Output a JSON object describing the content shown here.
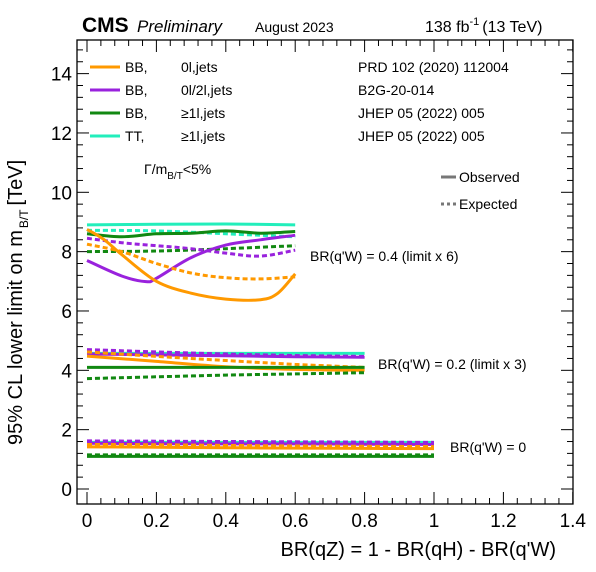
{
  "header": {
    "cms": "CMS",
    "preliminary": "Preliminary",
    "date": "August 2023",
    "lumi": "138 fb",
    "lumi_exp": "-1",
    "energy": "(13 TeV)"
  },
  "legend": [
    {
      "label_a": "BB,",
      "label_b": "0l,jets",
      "ref": "PRD 102 (2020) 112004",
      "color": "#ff9900"
    },
    {
      "label_a": "BB,",
      "label_b": "0l/2l,jets",
      "ref": "B2G-20-014",
      "color": "#9922dd"
    },
    {
      "label_a": "BB,",
      "label_b": "≥1l,jets",
      "ref": "JHEP 05 (2022) 005",
      "color": "#118811"
    },
    {
      "label_a": "TT,",
      "label_b": "≥1l,jets",
      "ref": "JHEP 05 (2022) 005",
      "color": "#22eebb"
    }
  ],
  "style_legend": {
    "observed": "Observed",
    "expected": "Expected"
  },
  "width_note": {
    "main": "Γ/m",
    "sub": "B/T",
    "tail": "<5%"
  },
  "annotations": {
    "g04": "BR(q'W) = 0.4 (limit x 6)",
    "g02": "BR(q'W) = 0.2 (limit x 3)",
    "g00": "BR(q'W) = 0"
  },
  "chart_data": {
    "type": "line",
    "xlabel": "BR(qZ) = 1 - BR(qH) - BR(q'W)",
    "ylabel_main": "95% CL lower limit on m",
    "ylabel_sub": "B/T",
    "ylabel_unit": "[TeV]",
    "xlim": [
      0,
      1.4
    ],
    "ylim": [
      0,
      15
    ],
    "xticks": [
      0,
      0.2,
      0.4,
      0.6,
      0.8,
      1,
      1.2,
      1.4
    ],
    "xtick_labels": [
      "0",
      "0.2",
      "0.4",
      "0.6",
      "0.8",
      "1",
      "1.2",
      "1.4"
    ],
    "yticks": [
      0,
      2,
      4,
      6,
      8,
      10,
      12,
      14
    ],
    "ytick_labels": [
      "0",
      "2",
      "4",
      "6",
      "8",
      "10",
      "12",
      "14"
    ],
    "grid": false,
    "series": [
      {
        "group": "BR(q'W) = 0",
        "analysis": "TT ≥1l,jets",
        "style": "observed",
        "color": "#22eebb",
        "x": [
          0,
          0.2,
          0.4,
          0.6,
          0.8,
          1.0
        ],
        "y": [
          1.57,
          1.57,
          1.57,
          1.57,
          1.57,
          1.57
        ]
      },
      {
        "group": "BR(q'W) = 0",
        "analysis": "BB 0l/2l,jets",
        "style": "expected",
        "color": "#9922dd",
        "x": [
          0,
          0.2,
          0.4,
          0.6,
          0.8,
          1.0
        ],
        "y": [
          1.62,
          1.61,
          1.6,
          1.59,
          1.58,
          1.57
        ]
      },
      {
        "group": "BR(q'W) = 0",
        "analysis": "BB 0l/2l,jets",
        "style": "observed",
        "color": "#9922dd",
        "x": [
          0,
          0.2,
          0.4,
          0.6,
          0.8,
          1.0
        ],
        "y": [
          1.54,
          1.53,
          1.52,
          1.52,
          1.51,
          1.5
        ]
      },
      {
        "group": "BR(q'W) = 0",
        "analysis": "BB 0l,jets",
        "style": "expected",
        "color": "#ff9900",
        "x": [
          0,
          0.2,
          0.4,
          0.6,
          0.8,
          1.0
        ],
        "y": [
          1.5,
          1.49,
          1.47,
          1.45,
          1.44,
          1.43
        ]
      },
      {
        "group": "BR(q'W) = 0",
        "analysis": "BB 0l,jets",
        "style": "observed",
        "color": "#ff9900",
        "x": [
          0,
          0.2,
          0.4,
          0.6,
          0.8,
          1.0
        ],
        "y": [
          1.42,
          1.41,
          1.39,
          1.38,
          1.37,
          1.36
        ]
      },
      {
        "group": "BR(q'W) = 0",
        "analysis": "BB ≥1l,jets",
        "style": "expected",
        "color": "#118811",
        "x": [
          0,
          0.2,
          0.4,
          0.6,
          0.8,
          1.0
        ],
        "y": [
          1.15,
          1.15,
          1.15,
          1.15,
          1.15,
          1.15
        ]
      },
      {
        "group": "BR(q'W) = 0",
        "analysis": "BB ≥1l,jets",
        "style": "observed",
        "color": "#118811",
        "x": [
          0,
          0.2,
          0.4,
          0.6,
          0.8,
          1.0
        ],
        "y": [
          1.1,
          1.1,
          1.1,
          1.1,
          1.1,
          1.1
        ]
      },
      {
        "group": "BR(q'W) = 0.2",
        "analysis": "TT ≥1l,jets",
        "style": "observed",
        "color": "#22eebb",
        "x": [
          0,
          0.2,
          0.4,
          0.6,
          0.8
        ],
        "y": [
          4.57,
          4.57,
          4.57,
          4.57,
          4.57
        ]
      },
      {
        "group": "BR(q'W) = 0.2",
        "analysis": "BB 0l/2l,jets",
        "style": "expected",
        "color": "#9922dd",
        "x": [
          0,
          0.2,
          0.4,
          0.6,
          0.8
        ],
        "y": [
          4.7,
          4.62,
          4.55,
          4.5,
          4.47
        ]
      },
      {
        "group": "BR(q'W) = 0.2",
        "analysis": "BB 0l/2l,jets",
        "style": "observed",
        "color": "#9922dd",
        "x": [
          0,
          0.2,
          0.4,
          0.6,
          0.8
        ],
        "y": [
          4.55,
          4.52,
          4.49,
          4.46,
          4.44
        ]
      },
      {
        "group": "BR(q'W) = 0.2",
        "analysis": "BB 0l,jets",
        "style": "expected",
        "color": "#ff9900",
        "x": [
          0,
          0.2,
          0.4,
          0.6,
          0.8
        ],
        "y": [
          4.62,
          4.47,
          4.33,
          4.2,
          4.1
        ]
      },
      {
        "group": "BR(q'W) = 0.2",
        "analysis": "BB 0l,jets",
        "style": "observed",
        "color": "#ff9900",
        "x": [
          0,
          0.2,
          0.4,
          0.6,
          0.8
        ],
        "y": [
          4.48,
          4.3,
          4.12,
          4.03,
          4.0
        ]
      },
      {
        "group": "BR(q'W) = 0.2",
        "analysis": "BB ≥1l,jets",
        "style": "observed",
        "color": "#118811",
        "x": [
          0,
          0.2,
          0.4,
          0.6,
          0.8
        ],
        "y": [
          4.1,
          4.1,
          4.1,
          4.1,
          4.1
        ]
      },
      {
        "group": "BR(q'W) = 0.2",
        "analysis": "BB ≥1l,jets",
        "style": "expected",
        "color": "#118811",
        "x": [
          0,
          0.2,
          0.4,
          0.6,
          0.8
        ],
        "y": [
          3.72,
          3.78,
          3.84,
          3.88,
          3.92
        ]
      },
      {
        "group": "BR(q'W) = 0.4",
        "analysis": "TT ≥1l,jets",
        "style": "observed",
        "color": "#22eebb",
        "x": [
          0,
          0.2,
          0.4,
          0.6
        ],
        "y": [
          8.9,
          8.92,
          8.93,
          8.9
        ]
      },
      {
        "group": "BR(q'W) = 0.4",
        "analysis": "TT ≥1l,jets",
        "style": "expected",
        "color": "#22eebb",
        "x": [
          0,
          0.2,
          0.4,
          0.6
        ],
        "y": [
          8.72,
          8.7,
          8.6,
          8.5
        ]
      },
      {
        "group": "BR(q'W) = 0.4",
        "analysis": "BB ≥1l,jets",
        "style": "observed",
        "color": "#118811",
        "x": [
          0,
          0.1,
          0.2,
          0.3,
          0.4,
          0.5,
          0.6
        ],
        "y": [
          8.6,
          8.5,
          8.6,
          8.62,
          8.7,
          8.62,
          8.68
        ]
      },
      {
        "group": "BR(q'W) = 0.4",
        "analysis": "BB ≥1l,jets",
        "style": "expected",
        "color": "#118811",
        "x": [
          0,
          0.2,
          0.4,
          0.6
        ],
        "y": [
          8.0,
          8.02,
          8.1,
          8.2
        ]
      },
      {
        "group": "BR(q'W) = 0.4",
        "analysis": "BB 0l/2l,jets",
        "style": "observed",
        "color": "#9922dd",
        "x": [
          0,
          0.1,
          0.17,
          0.2,
          0.3,
          0.4,
          0.5,
          0.6
        ],
        "y": [
          7.7,
          7.18,
          6.99,
          7.1,
          7.8,
          8.22,
          8.4,
          8.55
        ]
      },
      {
        "group": "BR(q'W) = 0.4",
        "analysis": "BB 0l/2l,jets",
        "style": "expected",
        "color": "#9922dd",
        "x": [
          0,
          0.1,
          0.2,
          0.3,
          0.4,
          0.5,
          0.6
        ],
        "y": [
          8.45,
          8.3,
          8.2,
          8.1,
          7.95,
          7.85,
          8.05
        ]
      },
      {
        "group": "BR(q'W) = 0.4",
        "analysis": "BB 0l,jets",
        "style": "observed",
        "color": "#ff9900",
        "x": [
          0,
          0.05,
          0.1,
          0.2,
          0.3,
          0.4,
          0.5,
          0.55,
          0.6
        ],
        "y": [
          8.75,
          8.4,
          7.9,
          7.0,
          6.6,
          6.4,
          6.38,
          6.6,
          7.25
        ]
      },
      {
        "group": "BR(q'W) = 0.4",
        "analysis": "BB 0l,jets",
        "style": "expected",
        "color": "#ff9900",
        "x": [
          0,
          0.1,
          0.2,
          0.3,
          0.4,
          0.5,
          0.6
        ],
        "y": [
          8.25,
          8.0,
          7.6,
          7.28,
          7.12,
          7.08,
          7.15
        ]
      }
    ]
  }
}
